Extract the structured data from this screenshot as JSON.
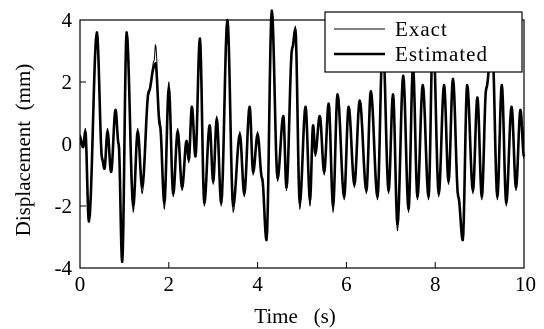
{
  "chart_data": {
    "type": "line",
    "title": "",
    "xlabel": "Time   (s)",
    "ylabel": "Displacement  (mm)",
    "xlim": [
      0,
      10
    ],
    "ylim": [
      -4,
      4
    ],
    "xticks": [
      0,
      2,
      4,
      6,
      8,
      10
    ],
    "yticks": [
      -4,
      -2,
      0,
      2,
      4
    ],
    "grid": false,
    "legend_position": "top-right",
    "series": [
      {
        "name": "Exact",
        "color": "#000000",
        "style": "thin",
        "peaks": [
          {
            "t": 0.0,
            "v": 0.3
          },
          {
            "t": 0.07,
            "v": 0.0
          },
          {
            "t": 0.12,
            "v": 0.5
          },
          {
            "t": 0.2,
            "v": -2.4
          },
          {
            "t": 0.38,
            "v": 3.5
          },
          {
            "t": 0.5,
            "v": -0.4
          },
          {
            "t": 0.55,
            "v": -0.7
          },
          {
            "t": 0.62,
            "v": 0.5
          },
          {
            "t": 0.7,
            "v": -0.8
          },
          {
            "t": 0.8,
            "v": 1.0
          },
          {
            "t": 0.87,
            "v": 0.0
          },
          {
            "t": 0.95,
            "v": -3.8
          },
          {
            "t": 1.05,
            "v": 3.6
          },
          {
            "t": 1.2,
            "v": -2.2
          },
          {
            "t": 1.3,
            "v": 0.5
          },
          {
            "t": 1.4,
            "v": -1.6
          },
          {
            "t": 1.55,
            "v": 1.6
          },
          {
            "t": 1.67,
            "v": 2.7
          },
          {
            "t": 1.7,
            "v": 3.2
          },
          {
            "t": 1.8,
            "v": 0.8
          },
          {
            "t": 1.9,
            "v": -2.1
          },
          {
            "t": 2.0,
            "v": 2.0
          },
          {
            "t": 2.1,
            "v": -1.7
          },
          {
            "t": 2.2,
            "v": 0.5
          },
          {
            "t": 2.3,
            "v": -1.5
          },
          {
            "t": 2.4,
            "v": 0.0
          },
          {
            "t": 2.45,
            "v": -0.6
          },
          {
            "t": 2.52,
            "v": 1.0
          },
          {
            "t": 2.6,
            "v": -0.3
          },
          {
            "t": 2.7,
            "v": 3.2
          },
          {
            "t": 2.8,
            "v": -2.0
          },
          {
            "t": 2.92,
            "v": 0.5
          },
          {
            "t": 3.0,
            "v": -1.3
          },
          {
            "t": 3.08,
            "v": 0.9
          },
          {
            "t": 3.18,
            "v": -2.0
          },
          {
            "t": 3.32,
            "v": 4.0
          },
          {
            "t": 3.45,
            "v": -2.2
          },
          {
            "t": 3.6,
            "v": 0.4
          },
          {
            "t": 3.7,
            "v": -1.7
          },
          {
            "t": 3.82,
            "v": 1.1
          },
          {
            "t": 3.9,
            "v": -1.0
          },
          {
            "t": 4.0,
            "v": 0.4
          },
          {
            "t": 4.1,
            "v": -1.2
          },
          {
            "t": 4.2,
            "v": -3.0
          },
          {
            "t": 4.32,
            "v": 4.3
          },
          {
            "t": 4.45,
            "v": -1.2
          },
          {
            "t": 4.58,
            "v": 0.8
          },
          {
            "t": 4.65,
            "v": -1.5
          },
          {
            "t": 4.78,
            "v": 3.0
          },
          {
            "t": 4.85,
            "v": 3.8
          },
          {
            "t": 4.95,
            "v": -2.1
          },
          {
            "t": 5.08,
            "v": 1.1
          },
          {
            "t": 5.18,
            "v": -2.0
          },
          {
            "t": 5.25,
            "v": 0.5
          },
          {
            "t": 5.3,
            "v": -0.4
          },
          {
            "t": 5.4,
            "v": 0.8
          },
          {
            "t": 5.5,
            "v": -1.0
          },
          {
            "t": 5.6,
            "v": 1.2
          },
          {
            "t": 5.7,
            "v": -2.2
          },
          {
            "t": 5.8,
            "v": 1.5
          },
          {
            "t": 5.95,
            "v": -1.8
          },
          {
            "t": 6.05,
            "v": 1.1
          },
          {
            "t": 6.18,
            "v": -1.4
          },
          {
            "t": 6.3,
            "v": 1.3
          },
          {
            "t": 6.45,
            "v": -1.6
          },
          {
            "t": 6.55,
            "v": 1.6
          },
          {
            "t": 6.7,
            "v": -1.8
          },
          {
            "t": 6.82,
            "v": 3.3
          },
          {
            "t": 6.95,
            "v": -1.6
          },
          {
            "t": 7.05,
            "v": 1.5
          },
          {
            "t": 7.15,
            "v": -2.8
          },
          {
            "t": 7.28,
            "v": 2.1
          },
          {
            "t": 7.4,
            "v": -2.2
          },
          {
            "t": 7.5,
            "v": 2.4
          },
          {
            "t": 7.6,
            "v": -1.8
          },
          {
            "t": 7.72,
            "v": 1.8
          },
          {
            "t": 7.85,
            "v": -1.8
          },
          {
            "t": 7.95,
            "v": 3.6
          },
          {
            "t": 8.08,
            "v": -1.7
          },
          {
            "t": 8.2,
            "v": 1.8
          },
          {
            "t": 8.3,
            "v": -1.3
          },
          {
            "t": 8.4,
            "v": 2.0
          },
          {
            "t": 8.52,
            "v": -1.8
          },
          {
            "t": 8.62,
            "v": -3.0
          },
          {
            "t": 8.72,
            "v": 1.8
          },
          {
            "t": 8.85,
            "v": -1.6
          },
          {
            "t": 8.95,
            "v": 1.4
          },
          {
            "t": 9.05,
            "v": -1.8
          },
          {
            "t": 9.15,
            "v": 1.7
          },
          {
            "t": 9.28,
            "v": 3.3
          },
          {
            "t": 9.4,
            "v": -1.8
          },
          {
            "t": 9.5,
            "v": 1.8
          },
          {
            "t": 9.6,
            "v": -2.0
          },
          {
            "t": 9.72,
            "v": 1.1
          },
          {
            "t": 9.82,
            "v": -1.5
          },
          {
            "t": 9.92,
            "v": 1.0
          },
          {
            "t": 10.0,
            "v": -0.5
          }
        ]
      },
      {
        "name": "Estimated",
        "color": "#000000",
        "style": "thick",
        "peaks": [
          {
            "t": 0.0,
            "v": 0.2
          },
          {
            "t": 0.07,
            "v": -0.1
          },
          {
            "t": 0.12,
            "v": 0.4
          },
          {
            "t": 0.2,
            "v": -2.5
          },
          {
            "t": 0.38,
            "v": 3.6
          },
          {
            "t": 0.5,
            "v": -0.5
          },
          {
            "t": 0.55,
            "v": -0.8
          },
          {
            "t": 0.62,
            "v": 0.4
          },
          {
            "t": 0.7,
            "v": -0.9
          },
          {
            "t": 0.8,
            "v": 1.1
          },
          {
            "t": 0.87,
            "v": 0.0
          },
          {
            "t": 0.95,
            "v": -3.8
          },
          {
            "t": 1.05,
            "v": 3.6
          },
          {
            "t": 1.2,
            "v": -2.0
          },
          {
            "t": 1.3,
            "v": 0.4
          },
          {
            "t": 1.4,
            "v": -1.4
          },
          {
            "t": 1.55,
            "v": 1.7
          },
          {
            "t": 1.67,
            "v": 2.5
          },
          {
            "t": 1.7,
            "v": 2.6
          },
          {
            "t": 1.8,
            "v": 0.6
          },
          {
            "t": 1.9,
            "v": -1.9
          },
          {
            "t": 2.0,
            "v": 1.8
          },
          {
            "t": 2.1,
            "v": -1.6
          },
          {
            "t": 2.2,
            "v": 0.4
          },
          {
            "t": 2.3,
            "v": -1.4
          },
          {
            "t": 2.4,
            "v": 0.1
          },
          {
            "t": 2.45,
            "v": -0.5
          },
          {
            "t": 2.52,
            "v": 1.2
          },
          {
            "t": 2.6,
            "v": -0.4
          },
          {
            "t": 2.7,
            "v": 3.4
          },
          {
            "t": 2.8,
            "v": -1.9
          },
          {
            "t": 2.92,
            "v": 0.6
          },
          {
            "t": 3.0,
            "v": -1.2
          },
          {
            "t": 3.08,
            "v": 0.8
          },
          {
            "t": 3.18,
            "v": -1.9
          },
          {
            "t": 3.32,
            "v": 4.0
          },
          {
            "t": 3.45,
            "v": -2.0
          },
          {
            "t": 3.6,
            "v": 0.3
          },
          {
            "t": 3.7,
            "v": -1.6
          },
          {
            "t": 3.82,
            "v": 1.2
          },
          {
            "t": 3.9,
            "v": -0.9
          },
          {
            "t": 4.0,
            "v": 0.3
          },
          {
            "t": 4.1,
            "v": -1.1
          },
          {
            "t": 4.2,
            "v": -3.1
          },
          {
            "t": 4.32,
            "v": 4.3
          },
          {
            "t": 4.45,
            "v": -1.1
          },
          {
            "t": 4.58,
            "v": 0.9
          },
          {
            "t": 4.65,
            "v": -1.4
          },
          {
            "t": 4.78,
            "v": 3.1
          },
          {
            "t": 4.85,
            "v": 3.7
          },
          {
            "t": 4.95,
            "v": -1.9
          },
          {
            "t": 5.08,
            "v": 1.2
          },
          {
            "t": 5.18,
            "v": -1.8
          },
          {
            "t": 5.25,
            "v": 0.6
          },
          {
            "t": 5.3,
            "v": -0.3
          },
          {
            "t": 5.4,
            "v": 0.9
          },
          {
            "t": 5.5,
            "v": -0.9
          },
          {
            "t": 5.6,
            "v": 1.3
          },
          {
            "t": 5.7,
            "v": -2.0
          },
          {
            "t": 5.8,
            "v": 1.6
          },
          {
            "t": 5.95,
            "v": -1.7
          },
          {
            "t": 6.05,
            "v": 1.2
          },
          {
            "t": 6.18,
            "v": -1.3
          },
          {
            "t": 6.3,
            "v": 1.4
          },
          {
            "t": 6.45,
            "v": -1.5
          },
          {
            "t": 6.55,
            "v": 1.7
          },
          {
            "t": 6.7,
            "v": -1.7
          },
          {
            "t": 6.82,
            "v": 3.4
          },
          {
            "t": 6.95,
            "v": -1.5
          },
          {
            "t": 7.05,
            "v": 1.6
          },
          {
            "t": 7.15,
            "v": -2.6
          },
          {
            "t": 7.28,
            "v": 2.2
          },
          {
            "t": 7.4,
            "v": -2.1
          },
          {
            "t": 7.5,
            "v": 2.5
          },
          {
            "t": 7.6,
            "v": -1.7
          },
          {
            "t": 7.72,
            "v": 1.9
          },
          {
            "t": 7.85,
            "v": -1.7
          },
          {
            "t": 7.95,
            "v": 3.7
          },
          {
            "t": 8.08,
            "v": -1.6
          },
          {
            "t": 8.2,
            "v": 1.9
          },
          {
            "t": 8.3,
            "v": -1.2
          },
          {
            "t": 8.4,
            "v": 2.1
          },
          {
            "t": 8.52,
            "v": -1.7
          },
          {
            "t": 8.62,
            "v": -3.1
          },
          {
            "t": 8.72,
            "v": 1.9
          },
          {
            "t": 8.85,
            "v": -1.5
          },
          {
            "t": 8.95,
            "v": 1.5
          },
          {
            "t": 9.05,
            "v": -1.7
          },
          {
            "t": 9.15,
            "v": 1.8
          },
          {
            "t": 9.28,
            "v": 3.4
          },
          {
            "t": 9.4,
            "v": -1.7
          },
          {
            "t": 9.5,
            "v": 1.9
          },
          {
            "t": 9.6,
            "v": -1.9
          },
          {
            "t": 9.72,
            "v": 1.2
          },
          {
            "t": 9.82,
            "v": -1.4
          },
          {
            "t": 9.92,
            "v": 1.1
          },
          {
            "t": 10.0,
            "v": -0.4
          }
        ]
      }
    ]
  }
}
